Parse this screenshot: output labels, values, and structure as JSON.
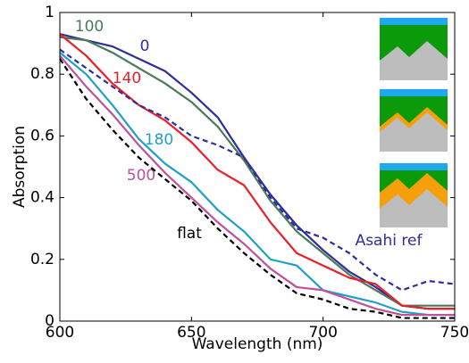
{
  "chart_data": {
    "type": "line",
    "x_label": "Wavelength (nm)",
    "y_label": "Absorption",
    "x": [
      600,
      610,
      620,
      630,
      640,
      650,
      660,
      670,
      680,
      690,
      700,
      710,
      720,
      730,
      740,
      750
    ],
    "xlim": [
      600,
      750
    ],
    "xticks": [
      600,
      650,
      700,
      750
    ],
    "ylim": [
      0,
      1
    ],
    "yticks": [
      0,
      0.2,
      0.4,
      0.6,
      0.8,
      1
    ],
    "series": [
      {
        "name": "0",
        "color": "#2e2e9a",
        "linestyle": "solid",
        "values": [
          0.93,
          0.91,
          0.89,
          0.85,
          0.81,
          0.74,
          0.66,
          0.53,
          0.41,
          0.31,
          0.23,
          0.16,
          0.11,
          0.05,
          0.04,
          0.04
        ]
      },
      {
        "name": "100",
        "color": "#4a7a5a",
        "linestyle": "solid",
        "values": [
          0.92,
          0.91,
          0.87,
          0.82,
          0.77,
          0.71,
          0.63,
          0.52,
          0.39,
          0.29,
          0.22,
          0.15,
          0.1,
          0.05,
          0.05,
          0.05
        ]
      },
      {
        "name": "140",
        "color": "#e8202a",
        "linestyle": "solid",
        "values": [
          0.93,
          0.86,
          0.77,
          0.7,
          0.65,
          0.58,
          0.49,
          0.44,
          0.32,
          0.22,
          0.18,
          0.14,
          0.12,
          0.05,
          0.04,
          0.04
        ]
      },
      {
        "name": "180",
        "color": "#1fa0c8",
        "linestyle": "solid",
        "values": [
          0.87,
          0.8,
          0.7,
          0.59,
          0.51,
          0.45,
          0.36,
          0.29,
          0.2,
          0.18,
          0.1,
          0.08,
          0.06,
          0.03,
          0.02,
          0.02
        ]
      },
      {
        "name": "500",
        "color": "#c0509a",
        "linestyle": "solid",
        "values": [
          0.86,
          0.76,
          0.67,
          0.57,
          0.48,
          0.4,
          0.32,
          0.25,
          0.17,
          0.11,
          0.1,
          0.07,
          0.04,
          0.02,
          0.02,
          0.02
        ]
      },
      {
        "name": "flat",
        "color": "#000000",
        "linestyle": "dashed",
        "values": [
          0.85,
          0.72,
          0.62,
          0.53,
          0.46,
          0.39,
          0.3,
          0.22,
          0.15,
          0.09,
          0.07,
          0.04,
          0.03,
          0.01,
          0.01,
          0.01
        ]
      },
      {
        "name": "Asahi ref",
        "color": "#2e2e9a",
        "linestyle": "dashed",
        "values": [
          0.88,
          0.82,
          0.76,
          0.7,
          0.66,
          0.6,
          0.57,
          0.53,
          0.4,
          0.3,
          0.27,
          0.22,
          0.15,
          0.1,
          0.13,
          0.12
        ]
      }
    ]
  }
}
